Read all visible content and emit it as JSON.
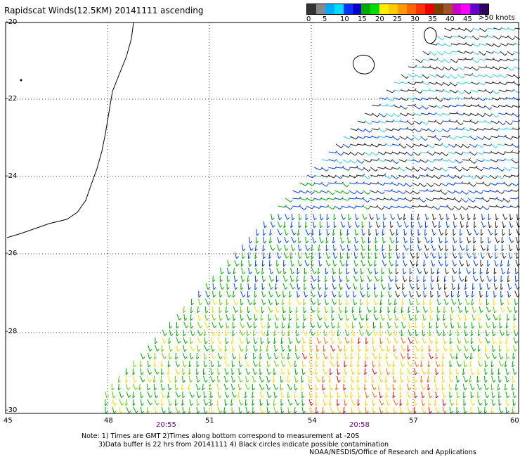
{
  "title": "Rapidscat Winds(12.5KM) 20141111 ascending",
  "legend": {
    "colors": [
      "#333333",
      "#888888",
      "#00aaff",
      "#00ddff",
      "#0033ff",
      "#0000cc",
      "#00aa00",
      "#00dd00",
      "#ffee00",
      "#ffcc00",
      "#ff9900",
      "#ff6600",
      "#ff3300",
      "#ee0000",
      "#7b3f00",
      "#a0522d",
      "#cc00cc",
      "#ff00ff",
      "#6600cc",
      "#330066"
    ],
    "labels": [
      "0",
      "5",
      "10",
      "15",
      "20",
      "25",
      "30",
      "35",
      "40",
      "45"
    ],
    "unit": ">50 knots"
  },
  "y_ticks": [
    "-20",
    "-22",
    "-24",
    "-26",
    "-28",
    "-30"
  ],
  "x_ticks": [
    "45",
    "48",
    "51",
    "54",
    "57",
    "60"
  ],
  "times": [
    "20:55",
    "20:58"
  ],
  "notes": [
    "Note: 1) Times are GMT 2)Times along bottom correspond to measurement at -20S",
    "3)Data buffer is 22 hrs from 20141111 4) Black circles indicate possible contamination",
    "NOAA/NESDIS/Office of Research and Applications"
  ]
}
